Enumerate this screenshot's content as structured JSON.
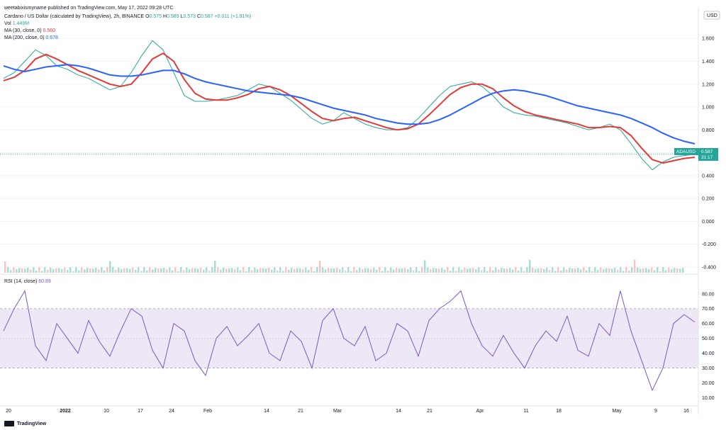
{
  "publisher": "weetabixismyname published on TradingView.com, May 17, 2022 09:28 UTC",
  "legend": {
    "symbol": "Cardano / US Dollar (calculated by TradingView), 2h, BINANCE",
    "o_label": "O",
    "o": "0.575",
    "h_label": "H",
    "h": "0.589",
    "l_label": "L",
    "l": "0.573",
    "c_label": "C",
    "c": "0.587",
    "change": "+0.011 (+1.91%)",
    "vol_label": "Vol",
    "vol": "1.449M",
    "ma30_label": "MA (30, close, 0)",
    "ma30": "0.560",
    "ma200_label": "MA (200, close, 0)",
    "ma200": "0.678",
    "rsi_label": "RSI (14, close)",
    "rsi": "60.89"
  },
  "currency": "USD",
  "price_tag": {
    "symbol": "ADAUSD",
    "price": "0.587",
    "countdown": "31:17"
  },
  "brand": "TradingView",
  "colors": {
    "up": "#26a69a",
    "down": "#ef5350",
    "ma30": "#e53935",
    "ma200": "#2962ff",
    "rsi": "#7e57c2",
    "rsi_band": "#ede7f6"
  },
  "chart_data": {
    "type": "line",
    "x_ticks": [
      "20",
      "2022",
      "10",
      "17",
      "24",
      "Feb",
      "14",
      "21",
      "Mar",
      "14",
      "21",
      "Apr",
      "11",
      "18",
      "May",
      "9",
      "16"
    ],
    "price_axis": {
      "ticks": [
        "1.600",
        "1.400",
        "1.200",
        "1.000",
        "0.800",
        "0.600",
        "0.400",
        "0.200",
        "0.000",
        "-0.200",
        "-0.400"
      ],
      "ylim": [
        -0.45,
        1.75
      ]
    },
    "series": [
      {
        "name": "Cardano / US Dollar",
        "y": [
          1.25,
          1.3,
          1.4,
          1.5,
          1.45,
          1.36,
          1.33,
          1.28,
          1.25,
          1.2,
          1.15,
          1.18,
          1.3,
          1.45,
          1.58,
          1.5,
          1.3,
          1.1,
          1.05,
          1.05,
          1.06,
          1.08,
          1.1,
          1.15,
          1.2,
          1.18,
          1.12,
          1.06,
          0.98,
          0.9,
          0.85,
          0.88,
          0.95,
          0.9,
          0.85,
          0.82,
          0.8,
          0.8,
          0.82,
          0.9,
          1.0,
          1.1,
          1.18,
          1.2,
          1.22,
          1.18,
          1.1,
          1.0,
          0.95,
          0.93,
          0.92,
          0.9,
          0.88,
          0.86,
          0.83,
          0.8,
          0.82,
          0.85,
          0.8,
          0.68,
          0.55,
          0.45,
          0.52,
          0.56,
          0.575,
          0.587
        ]
      },
      {
        "name": "MA (30, close, 0)",
        "y": [
          1.23,
          1.26,
          1.32,
          1.42,
          1.46,
          1.42,
          1.37,
          1.32,
          1.28,
          1.24,
          1.2,
          1.18,
          1.2,
          1.3,
          1.42,
          1.47,
          1.4,
          1.24,
          1.12,
          1.07,
          1.06,
          1.06,
          1.08,
          1.11,
          1.16,
          1.18,
          1.15,
          1.1,
          1.03,
          0.96,
          0.9,
          0.88,
          0.9,
          0.91,
          0.88,
          0.85,
          0.82,
          0.8,
          0.81,
          0.85,
          0.93,
          1.02,
          1.11,
          1.17,
          1.2,
          1.2,
          1.16,
          1.08,
          1.01,
          0.96,
          0.93,
          0.91,
          0.89,
          0.87,
          0.85,
          0.82,
          0.82,
          0.83,
          0.82,
          0.75,
          0.64,
          0.54,
          0.51,
          0.53,
          0.55,
          0.56
        ]
      },
      {
        "name": "MA (200, close, 0)",
        "y": [
          1.36,
          1.33,
          1.31,
          1.33,
          1.35,
          1.36,
          1.37,
          1.36,
          1.34,
          1.31,
          1.28,
          1.27,
          1.27,
          1.28,
          1.3,
          1.32,
          1.32,
          1.29,
          1.25,
          1.22,
          1.2,
          1.18,
          1.16,
          1.14,
          1.13,
          1.12,
          1.11,
          1.1,
          1.08,
          1.05,
          1.02,
          0.99,
          0.97,
          0.95,
          0.93,
          0.9,
          0.88,
          0.86,
          0.85,
          0.85,
          0.86,
          0.89,
          0.93,
          0.98,
          1.03,
          1.08,
          1.12,
          1.14,
          1.15,
          1.14,
          1.12,
          1.1,
          1.07,
          1.04,
          1.01,
          0.99,
          0.97,
          0.95,
          0.93,
          0.9,
          0.86,
          0.82,
          0.77,
          0.73,
          0.7,
          0.678
        ]
      }
    ],
    "rsi": {
      "ticks": [
        "80.00",
        "70.00",
        "60.00",
        "50.00",
        "40.00",
        "30.00",
        "20.00",
        "10.00"
      ],
      "ylim": [
        5,
        88
      ],
      "band": [
        30,
        70
      ],
      "y": [
        55,
        70,
        82,
        45,
        35,
        60,
        50,
        40,
        62,
        48,
        38,
        55,
        70,
        65,
        42,
        30,
        60,
        55,
        35,
        25,
        50,
        58,
        45,
        52,
        60,
        40,
        35,
        55,
        48,
        30,
        62,
        70,
        50,
        45,
        58,
        35,
        40,
        60,
        55,
        38,
        62,
        70,
        75,
        82,
        60,
        45,
        38,
        52,
        40,
        30,
        45,
        55,
        48,
        65,
        42,
        38,
        60,
        52,
        82,
        55,
        35,
        15,
        30,
        60,
        66,
        61
      ]
    }
  }
}
